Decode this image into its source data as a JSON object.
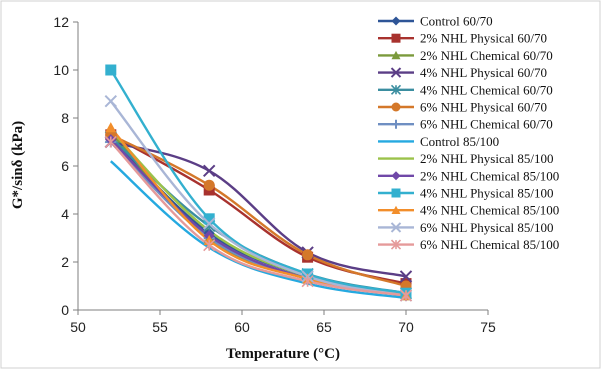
{
  "chart_data": {
    "type": "line",
    "title": "",
    "xlabel": "Temperature (°C)",
    "ylabel": "G*/sinδ (kPa)",
    "xlim": [
      50,
      75
    ],
    "ylim": [
      0,
      12
    ],
    "xticks": [
      50,
      55,
      60,
      65,
      70,
      75
    ],
    "yticks": [
      0,
      2,
      4,
      6,
      8,
      10,
      12
    ],
    "grid": false,
    "legend_position": "right",
    "x": [
      52,
      58,
      64,
      70
    ],
    "series": [
      {
        "name": "Control 60/70",
        "values": [
          7.2,
          3.2,
          1.4,
          0.6
        ],
        "color": "#2e5597",
        "marker": "diamond"
      },
      {
        "name": "2% NHL Physical 60/70",
        "values": [
          7.3,
          5.0,
          2.2,
          1.1
        ],
        "color": "#a8322e",
        "marker": "square"
      },
      {
        "name": "2% NHL Chemical 60/70",
        "values": [
          7.4,
          3.0,
          1.3,
          0.6
        ],
        "color": "#7b9a3c",
        "marker": "triangle"
      },
      {
        "name": "4% NHL Physical 60/70",
        "values": [
          7.0,
          5.8,
          2.4,
          1.4
        ],
        "color": "#5b3e86",
        "marker": "x"
      },
      {
        "name": "4% NHL Chemical 60/70",
        "values": [
          7.2,
          3.5,
          1.5,
          0.7
        ],
        "color": "#3b8ea0",
        "marker": "star"
      },
      {
        "name": "6% NHL Physical 60/70",
        "values": [
          7.3,
          5.2,
          2.3,
          1.0
        ],
        "color": "#d4782a",
        "marker": "circle"
      },
      {
        "name": "6% NHL Chemical 60/70",
        "values": [
          7.0,
          3.0,
          1.3,
          0.6
        ],
        "color": "#6f8fc2",
        "marker": "plus"
      },
      {
        "name": "Control 85/100",
        "values": [
          6.2,
          2.6,
          1.1,
          0.5
        ],
        "color": "#25a9e0",
        "marker": "none"
      },
      {
        "name": "2% NHL Physical 85/100",
        "values": [
          7.5,
          3.3,
          1.4,
          0.6
        ],
        "color": "#9bc24a",
        "marker": "none"
      },
      {
        "name": "2% NHL Chemical 85/100",
        "values": [
          7.1,
          3.1,
          1.3,
          0.6
        ],
        "color": "#7048a8",
        "marker": "diamond"
      },
      {
        "name": "4% NHL Physical 85/100",
        "values": [
          10.0,
          3.8,
          1.5,
          0.7
        ],
        "color": "#33b0cf",
        "marker": "square"
      },
      {
        "name": "4% NHL Chemical 85/100",
        "values": [
          7.6,
          2.9,
          1.3,
          0.6
        ],
        "color": "#f28e2b",
        "marker": "triangle"
      },
      {
        "name": "6% NHL Physical 85/100",
        "values": [
          8.7,
          3.6,
          1.4,
          0.6
        ],
        "color": "#a9b6d6",
        "marker": "x"
      },
      {
        "name": "6% NHL Chemical 85/100",
        "values": [
          7.0,
          2.7,
          1.2,
          0.6
        ],
        "color": "#e59a9a",
        "marker": "star"
      }
    ]
  }
}
